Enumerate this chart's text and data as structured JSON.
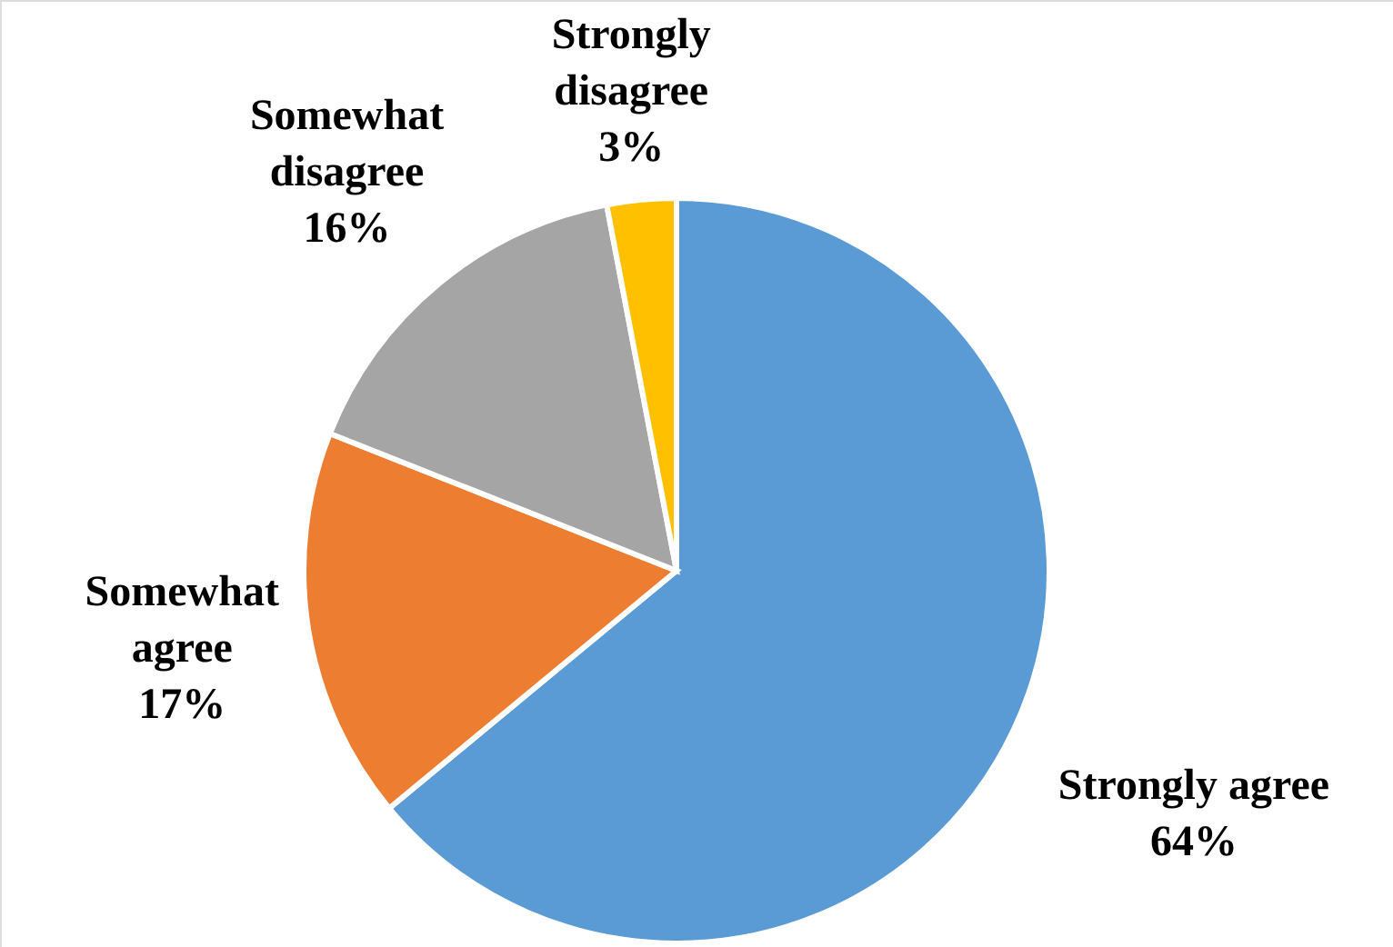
{
  "chart_data": {
    "type": "pie",
    "categories": [
      "Strongly agree",
      "Somewhat agree",
      "Somewhat disagree",
      "Strongly disagree"
    ],
    "values": [
      64,
      17,
      16,
      3
    ],
    "colors": [
      "#5b9bd5",
      "#ed7d31",
      "#a5a5a5",
      "#ffc000"
    ],
    "value_labels": [
      "64%",
      "17%",
      "16%",
      "3%"
    ]
  }
}
